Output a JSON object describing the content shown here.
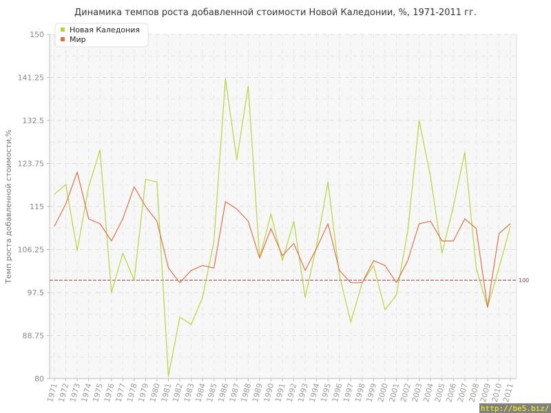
{
  "chart_data": {
    "type": "line",
    "title": "Динамика темпов роста добавленной стоимости Новой Каледонии, %, 1971-2011 гг.",
    "ylabel": "Темп роста добавленной стоимости,%",
    "xlabel": "",
    "ylim": [
      80,
      150
    ],
    "yticks": [
      "80",
      "88.75",
      "97.5",
      "106.25",
      "115",
      "123.75",
      "132.5",
      "141.25",
      "150"
    ],
    "grid": true,
    "legend_position": "top-left",
    "reference_line": {
      "value": 100,
      "label": "100",
      "color": "#8b3a4a"
    },
    "x": [
      "1971",
      "1972",
      "1973",
      "1974",
      "1975",
      "1976",
      "1977",
      "1978",
      "1979",
      "1980",
      "1981",
      "1982",
      "1983",
      "1984",
      "1985",
      "1986",
      "1987",
      "1988",
      "1989",
      "1990",
      "1991",
      "1992",
      "1993",
      "1994",
      "1995",
      "1996",
      "1997",
      "1998",
      "1999",
      "2000",
      "2001",
      "2002",
      "2003",
      "2004",
      "2005",
      "2006",
      "2007",
      "2008",
      "2009",
      "2010",
      "2011"
    ],
    "series": [
      {
        "name": "Новая Каледония",
        "color": "#b5d33d",
        "values": [
          117.5,
          119.5,
          106,
          119,
          126.5,
          97.5,
          105.5,
          100,
          120.5,
          120,
          80.5,
          92.5,
          91,
          96.5,
          108,
          141,
          124.5,
          139.5,
          104.5,
          113.5,
          104,
          112,
          96.5,
          107,
          120,
          101,
          91.5,
          99.5,
          103,
          94,
          97,
          110,
          132.5,
          121,
          105.5,
          115,
          126,
          102.5,
          94.5,
          102.5,
          111
        ]
      },
      {
        "name": "Мир",
        "color": "#d9704a",
        "values": [
          111,
          115.5,
          122,
          112.5,
          111.5,
          108,
          112.5,
          119,
          115,
          112,
          102.5,
          99.5,
          102,
          103,
          102.5,
          116,
          114.5,
          112,
          104.5,
          110.5,
          105,
          107.5,
          102,
          106.5,
          111.5,
          102,
          99.5,
          99.5,
          104,
          103,
          99.5,
          104,
          111.5,
          112,
          108,
          108,
          112.5,
          110.5,
          94.5,
          109.5,
          111.5
        ]
      }
    ]
  },
  "watermark": "http://be5.biz/"
}
